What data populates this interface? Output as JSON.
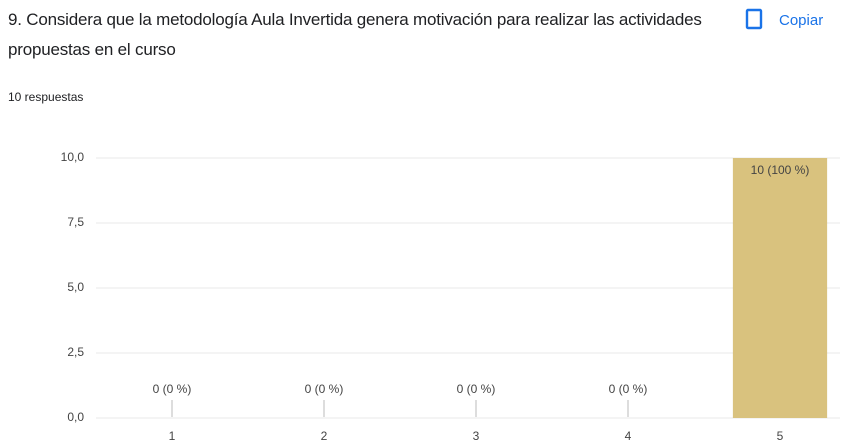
{
  "header": {
    "title": "9. Considera que la metodología Aula Invertida genera motivación para  realizar las actividades propuestas en el curso",
    "copy_button": "Copiar",
    "responses": "10 respuestas"
  },
  "chart_data": {
    "type": "bar",
    "categories": [
      "1",
      "2",
      "3",
      "4",
      "5"
    ],
    "values": [
      0,
      0,
      0,
      0,
      10
    ],
    "value_labels": [
      "0 (0 %)",
      "0 (0 %)",
      "0 (0 %)",
      "0 (0 %)",
      "10 (100 %)"
    ],
    "color": "#d9c27e",
    "ylim": [
      0,
      10
    ],
    "yticks": [
      {
        "value": 0,
        "label": "0,0"
      },
      {
        "value": 2.5,
        "label": "2,5"
      },
      {
        "value": 5,
        "label": "5,0"
      },
      {
        "value": 7.5,
        "label": "7,5"
      },
      {
        "value": 10,
        "label": "10,0"
      }
    ],
    "grid": true
  }
}
